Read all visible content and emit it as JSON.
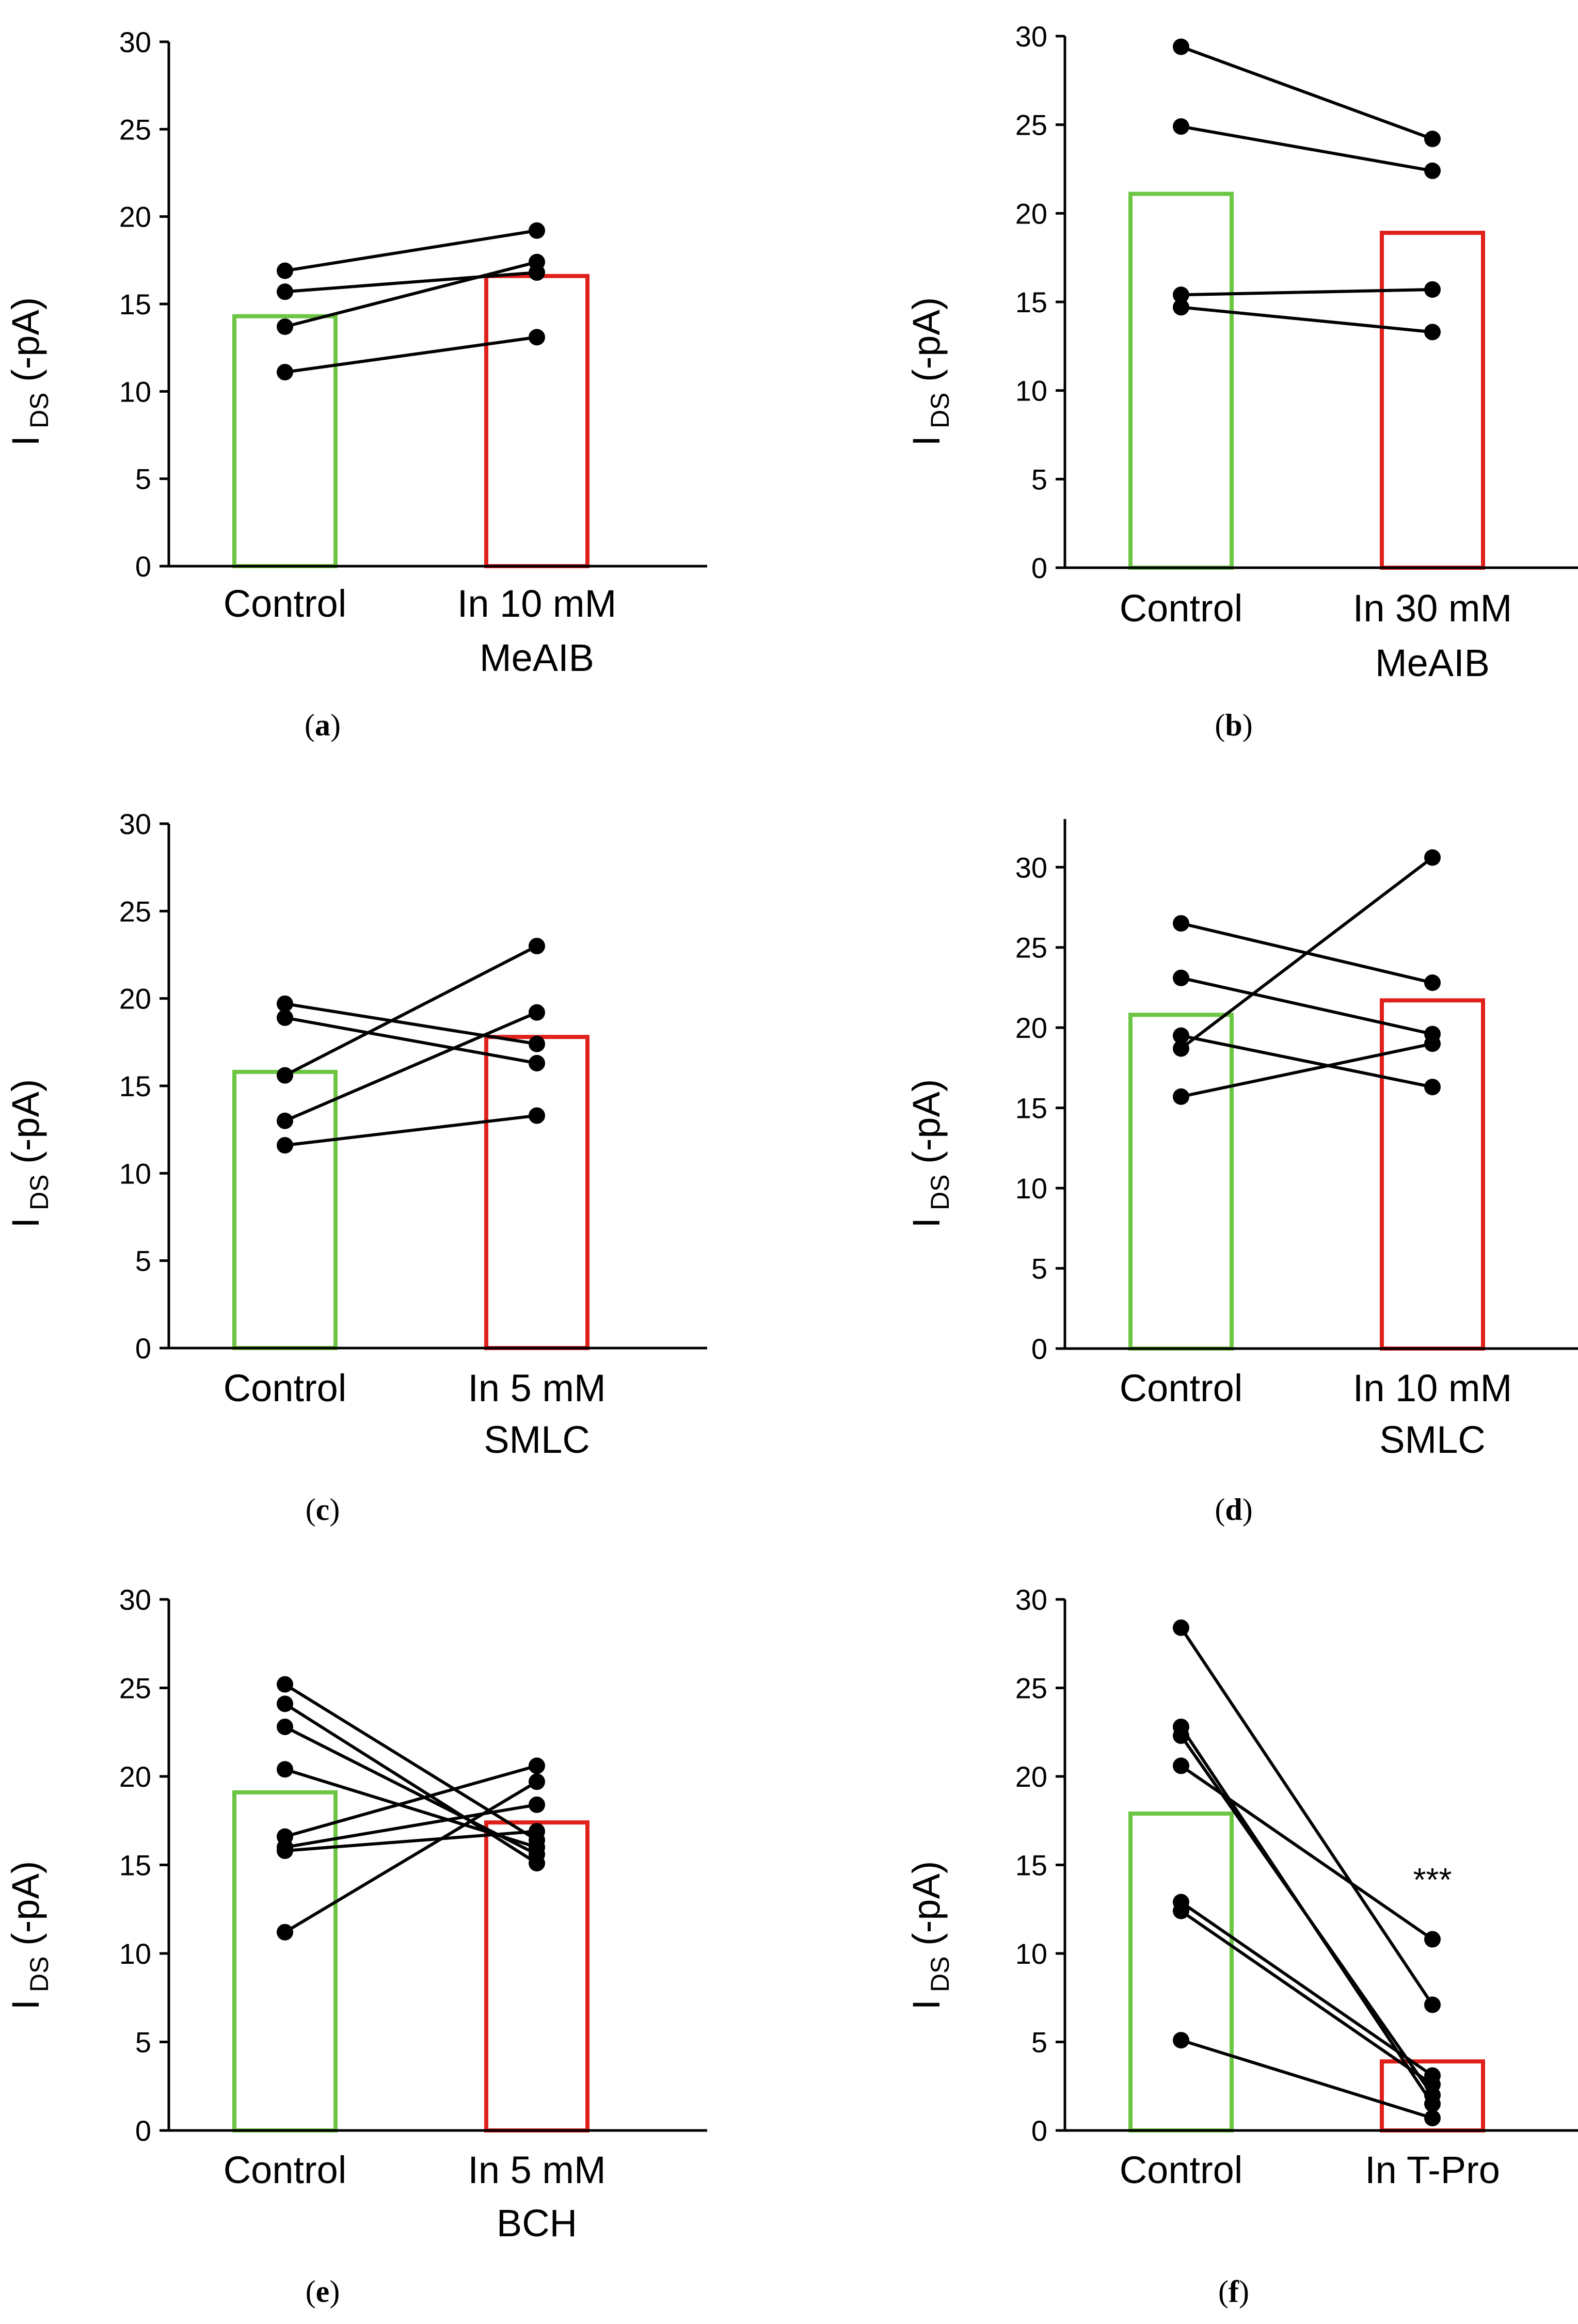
{
  "chart_data": [
    {
      "panel": "(a)",
      "type": "bar",
      "ylabel_main": "I",
      "ylabel_sub": "DS",
      "ylabel_unit": " (-pA)",
      "ylim": [
        0,
        30
      ],
      "yticks": [
        0,
        5,
        10,
        15,
        20,
        25,
        30
      ],
      "categories": [
        [
          "Control"
        ],
        [
          "In 10 mM",
          "MeAIB"
        ]
      ],
      "bar_colors": [
        "#6CC644",
        "#E0201B"
      ],
      "bar_values": [
        14.3,
        16.6
      ],
      "pairs": [
        [
          16.9,
          19.2
        ],
        [
          15.7,
          16.8
        ],
        [
          13.7,
          17.4
        ],
        [
          11.1,
          13.1
        ]
      ],
      "annotation": ""
    },
    {
      "panel": "(b)",
      "type": "bar",
      "ylabel_main": "I",
      "ylabel_sub": "DS",
      "ylabel_unit": " (-pA)",
      "ylim": [
        0,
        30
      ],
      "yticks": [
        0,
        5,
        10,
        15,
        20,
        25,
        30
      ],
      "categories": [
        [
          "Control"
        ],
        [
          "In 30 mM",
          "MeAIB"
        ]
      ],
      "bar_colors": [
        "#6CC644",
        "#E0201B"
      ],
      "bar_values": [
        21.1,
        18.9
      ],
      "pairs": [
        [
          29.4,
          24.2
        ],
        [
          24.9,
          22.4
        ],
        [
          15.4,
          15.7
        ],
        [
          14.7,
          13.3
        ]
      ],
      "annotation": ""
    },
    {
      "panel": "(c)",
      "type": "bar",
      "ylabel_main": "I",
      "ylabel_sub": "DS",
      "ylabel_unit": " (-pA)",
      "ylim": [
        0,
        30
      ],
      "yticks": [
        0,
        5,
        10,
        15,
        20,
        25,
        30
      ],
      "categories": [
        [
          "Control"
        ],
        [
          "In 5 mM",
          "SMLC"
        ]
      ],
      "bar_colors": [
        "#6CC644",
        "#E0201B"
      ],
      "bar_values": [
        15.8,
        17.8
      ],
      "pairs": [
        [
          19.7,
          17.4
        ],
        [
          18.9,
          16.3
        ],
        [
          15.6,
          23.0
        ],
        [
          13.0,
          19.2
        ],
        [
          11.6,
          13.3
        ]
      ],
      "annotation": ""
    },
    {
      "panel": "(d)",
      "type": "bar",
      "ylabel_main": "I",
      "ylabel_sub": "DS",
      "ylabel_unit": " (-pA)",
      "ylim": [
        0,
        33
      ],
      "yticks": [
        0,
        5,
        10,
        15,
        20,
        25,
        30
      ],
      "categories": [
        [
          "Control"
        ],
        [
          "In 10 mM",
          "SMLC"
        ]
      ],
      "bar_colors": [
        "#6CC644",
        "#E0201B"
      ],
      "bar_values": [
        20.8,
        21.7
      ],
      "pairs": [
        [
          26.5,
          22.8
        ],
        [
          23.1,
          19.6
        ],
        [
          19.5,
          16.3
        ],
        [
          18.7,
          30.6
        ],
        [
          15.7,
          19.0
        ]
      ],
      "annotation": ""
    },
    {
      "panel": "(e)",
      "type": "bar",
      "ylabel_main": "I",
      "ylabel_sub": "DS",
      "ylabel_unit": " (-pA)",
      "ylim": [
        0,
        30
      ],
      "yticks": [
        0,
        5,
        10,
        15,
        20,
        25,
        30
      ],
      "categories": [
        [
          "Control"
        ],
        [
          "In 5 mM",
          "BCH"
        ]
      ],
      "bar_colors": [
        "#6CC644",
        "#E0201B"
      ],
      "bar_values": [
        19.1,
        17.4
      ],
      "pairs": [
        [
          25.2,
          16.4
        ],
        [
          24.1,
          15.1
        ],
        [
          22.8,
          15.6
        ],
        [
          20.4,
          16.0
        ],
        [
          16.6,
          20.6
        ],
        [
          16.0,
          18.4
        ],
        [
          15.8,
          16.9
        ],
        [
          11.2,
          19.7
        ]
      ],
      "annotation": ""
    },
    {
      "panel": "(f)",
      "type": "bar",
      "ylabel_main": "I",
      "ylabel_sub": "DS",
      "ylabel_unit": " (-pA)",
      "ylim": [
        0,
        30
      ],
      "yticks": [
        0,
        5,
        10,
        15,
        20,
        25,
        30
      ],
      "categories": [
        [
          "Control"
        ],
        [
          "In T-Pro"
        ]
      ],
      "bar_colors": [
        "#6CC644",
        "#E0201B"
      ],
      "bar_values": [
        17.9,
        3.9
      ],
      "pairs": [
        [
          28.4,
          7.1
        ],
        [
          22.8,
          1.5
        ],
        [
          22.3,
          2.0
        ],
        [
          20.6,
          10.8
        ],
        [
          12.9,
          3.1
        ],
        [
          12.4,
          2.6
        ],
        [
          5.1,
          0.7
        ]
      ],
      "annotation": "***"
    }
  ]
}
